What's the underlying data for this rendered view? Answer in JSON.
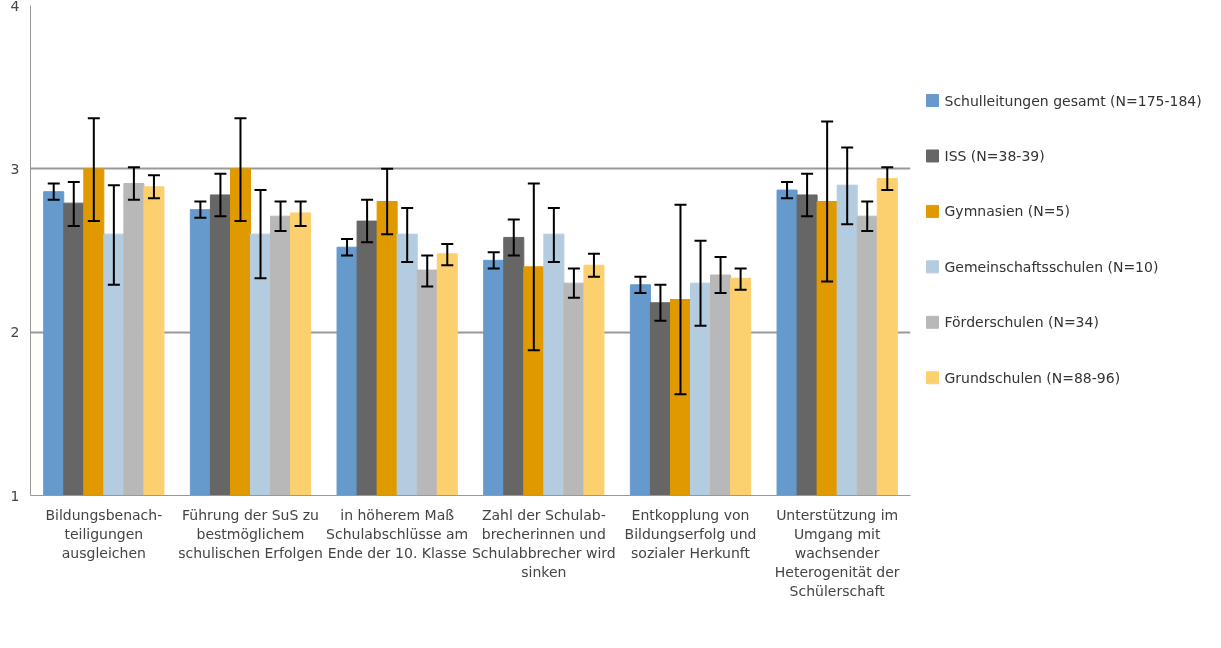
{
  "chart_data": {
    "type": "bar",
    "categories": [
      "Bildungsbenach-teiligungen ausgleichen",
      "Führung der SuS zu bestmöglichem schulischen Erfolgen",
      "in höherem Maß Schulabschlüsse am Ende der 10. Klasse",
      "Zahl der Schulab-brecherinnen und Schulabbrecher wird sinken",
      "Entkopplung von Bildungserfolg und sozialer Herkunft",
      "Unterstützung im Umgang mit wachsender Heterogenität der Schülerschaft"
    ],
    "series": [
      {
        "name": "Schulleitungen gesamt (N=175-184)",
        "color": "#6699cc",
        "values": [
          2.86,
          2.75,
          2.52,
          2.44,
          2.29,
          2.87
        ],
        "errors": [
          [
            2.81,
            2.91
          ],
          [
            2.7,
            2.8
          ],
          [
            2.47,
            2.57
          ],
          [
            2.39,
            2.49
          ],
          [
            2.24,
            2.34
          ],
          [
            2.82,
            2.92
          ]
        ]
      },
      {
        "name": "ISS (N=38-39)",
        "color": "#666666",
        "values": [
          2.79,
          2.84,
          2.68,
          2.58,
          2.18,
          2.84
        ],
        "errors": [
          [
            2.65,
            2.92
          ],
          [
            2.71,
            2.97
          ],
          [
            2.55,
            2.81
          ],
          [
            2.47,
            2.69
          ],
          [
            2.07,
            2.29
          ],
          [
            2.71,
            2.97
          ]
        ]
      },
      {
        "name": "Gymnasien (N=5)",
        "color": "#e09a00",
        "values": [
          3.0,
          3.0,
          2.8,
          2.4,
          2.2,
          2.8
        ],
        "errors": [
          [
            2.68,
            3.31
          ],
          [
            2.68,
            3.31
          ],
          [
            2.6,
            3.0
          ],
          [
            1.89,
            2.91
          ],
          [
            1.62,
            2.78
          ],
          [
            2.31,
            3.29
          ]
        ]
      },
      {
        "name": "Gemeinschaftsschulen (N=10)",
        "color": "#b4cce0",
        "values": [
          2.6,
          2.6,
          2.6,
          2.6,
          2.3,
          2.9
        ],
        "errors": [
          [
            2.29,
            2.9
          ],
          [
            2.33,
            2.87
          ],
          [
            2.43,
            2.76
          ],
          [
            2.43,
            2.76
          ],
          [
            2.04,
            2.56
          ],
          [
            2.66,
            3.13
          ]
        ]
      },
      {
        "name": "Förderschulen (N=34)",
        "color": "#b8b8b8",
        "values": [
          2.91,
          2.71,
          2.38,
          2.3,
          2.35,
          2.71
        ],
        "errors": [
          [
            2.81,
            3.01
          ],
          [
            2.62,
            2.8
          ],
          [
            2.28,
            2.47
          ],
          [
            2.21,
            2.39
          ],
          [
            2.24,
            2.46
          ],
          [
            2.62,
            2.8
          ]
        ]
      },
      {
        "name": "Grundschulen (N=88-96)",
        "color": "#fdd06f",
        "values": [
          2.89,
          2.73,
          2.48,
          2.41,
          2.33,
          2.94
        ],
        "errors": [
          [
            2.82,
            2.96
          ],
          [
            2.65,
            2.8
          ],
          [
            2.41,
            2.54
          ],
          [
            2.34,
            2.48
          ],
          [
            2.26,
            2.39
          ],
          [
            2.87,
            3.01
          ]
        ]
      }
    ],
    "ylim": [
      1,
      4
    ],
    "yticks": [
      1,
      2,
      3,
      4
    ],
    "grid": "y",
    "legend": "right"
  }
}
